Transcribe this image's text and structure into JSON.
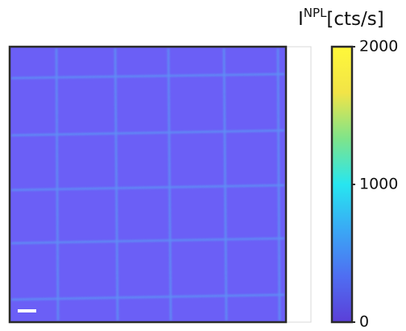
{
  "chart_data": {
    "type": "image",
    "colorbar": {
      "label": "I",
      "label_sup": "NPL",
      "label_unit": "[cts/s]",
      "lim": [
        0,
        2000
      ],
      "ticks": [
        0,
        1000,
        2000
      ],
      "colormap": [
        "#5b3fd8",
        "#4f6ef2",
        "#3aa8f5",
        "#27e6f0",
        "#7fe48a",
        "#f2e447",
        "#fff83a"
      ]
    }
  }
}
